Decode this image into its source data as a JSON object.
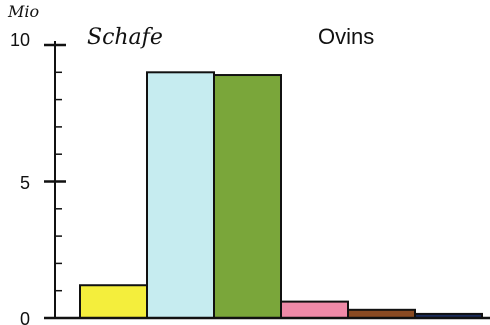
{
  "chart_data": {
    "type": "bar",
    "unit_label": "Mio",
    "title_de": "Schafe",
    "title_fr": "Ovins",
    "y_ticks": [
      "0",
      "5",
      "10"
    ],
    "ylim": [
      0,
      10
    ],
    "values": [
      1.2,
      9.0,
      8.9,
      0.6,
      0.3,
      0.15
    ],
    "colors": [
      "#f4ee3c",
      "#c6ecf0",
      "#7aa63a",
      "#f08aa8",
      "#8a4a22",
      "#1a2a5a"
    ],
    "grid": false
  }
}
